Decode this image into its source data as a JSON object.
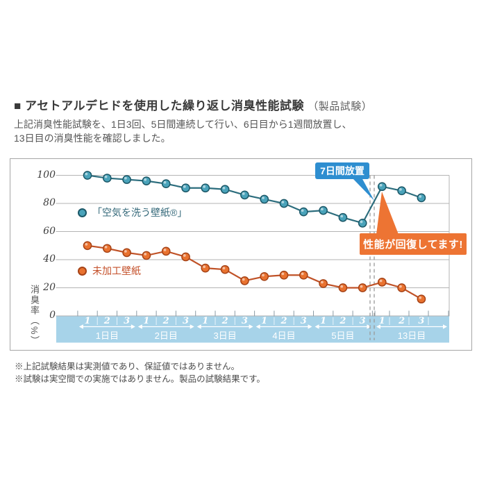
{
  "page": {
    "title": "■ アセトアルデヒドを使用した繰り返し消臭性能試験",
    "title_suffix": "（製品試験）",
    "description_line1": "上記消臭性能試験を、1日3回、5日間連続して行い、6日目から1週間放置し、",
    "description_line2": "13日目の消臭性能を確認しました。",
    "note1": "※上記試験結果は実測値であり、保証値ではありません。",
    "note2": "※試験は実空間での実施ではありません。製品の試験結果です。"
  },
  "callouts": {
    "rest": "7日間放置",
    "recovery": "性能が回復してます!"
  },
  "chart_data": {
    "type": "line",
    "title": "アセトアルデヒドを使用した繰り返し消臭性能試験（製品試験）",
    "ylabel": "消臭率（%）",
    "ylim": [
      0,
      100
    ],
    "yticks": [
      100,
      80,
      60,
      40,
      20,
      0
    ],
    "grid": "horizontal",
    "legend_position": "inside-left",
    "day_groups": [
      {
        "label": "1日目",
        "trials": [
          "1",
          "2",
          "3"
        ]
      },
      {
        "label": "2日目",
        "trials": [
          "1",
          "2",
          "3"
        ]
      },
      {
        "label": "3日目",
        "trials": [
          "1",
          "2",
          "3"
        ]
      },
      {
        "label": "4日目",
        "trials": [
          "1",
          "2",
          "3"
        ]
      },
      {
        "label": "5日目",
        "trials": [
          "1",
          "2",
          "3"
        ]
      },
      {
        "label": "13日目",
        "trials": [
          "1",
          "2",
          "3"
        ]
      }
    ],
    "gap_note": "double dashed vertical lines between 5日目 and 13日目 = 1 week rest",
    "series": [
      {
        "name": "「空気を洗う壁紙®」",
        "line_color": "#2c6d7d",
        "marker_color": "#4aa3ba",
        "marker_edge": "#1c5868",
        "values": [
          100,
          98,
          97,
          96,
          94,
          91,
          91,
          90,
          86,
          83,
          80,
          74,
          75,
          70,
          66,
          92,
          89,
          84
        ]
      },
      {
        "name": "未加工壁紙",
        "line_color": "#c05227",
        "marker_color": "#e9722f",
        "marker_edge": "#a64317",
        "values": [
          50,
          48,
          45,
          43,
          46,
          42,
          34,
          33,
          25,
          28,
          29,
          29,
          23,
          20,
          20,
          24,
          20,
          12
        ]
      }
    ],
    "annotations": [
      {
        "text": "7日間放置",
        "color": "#2e8ed0",
        "points_to": "rest gap dashed lines"
      },
      {
        "text": "性能が回復してます!",
        "color": "#ed7433",
        "points_to": "13日目 trial1 of series 1"
      }
    ],
    "colors": {
      "band": "#a7d3e9",
      "gridline": "#b3b3b3",
      "dashed_gap": "#999999",
      "band_text": "#ffffff"
    }
  }
}
